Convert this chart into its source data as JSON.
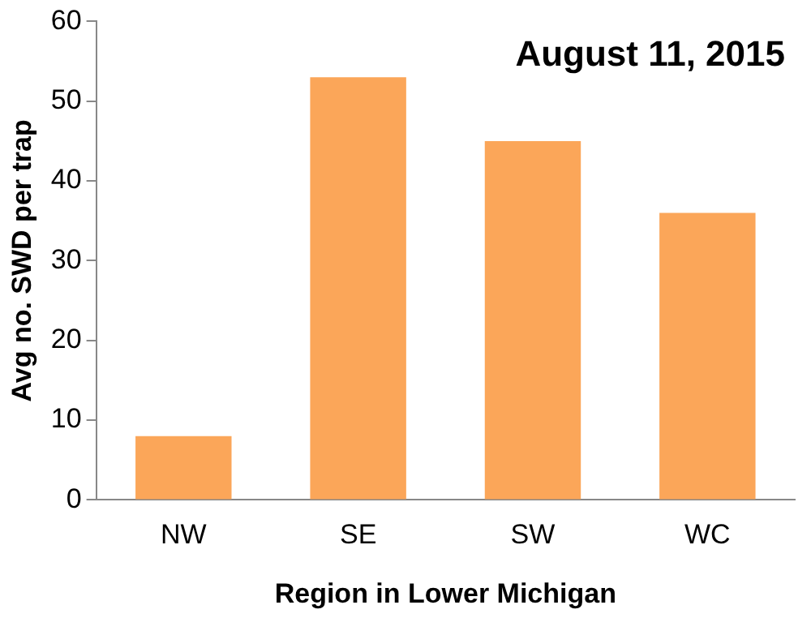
{
  "chart_data": {
    "type": "bar",
    "title": "August 11, 2015",
    "xlabel": "Region in Lower Michigan",
    "ylabel": "Avg no. SWD per trap",
    "categories": [
      "NW",
      "SE",
      "SW",
      "WC"
    ],
    "values": [
      8,
      53,
      45,
      36
    ],
    "color": "#fba659",
    "ylim": [
      0,
      60
    ],
    "yticks": [
      0,
      10,
      20,
      30,
      40,
      50,
      60
    ],
    "grid": false,
    "legend": false
  }
}
